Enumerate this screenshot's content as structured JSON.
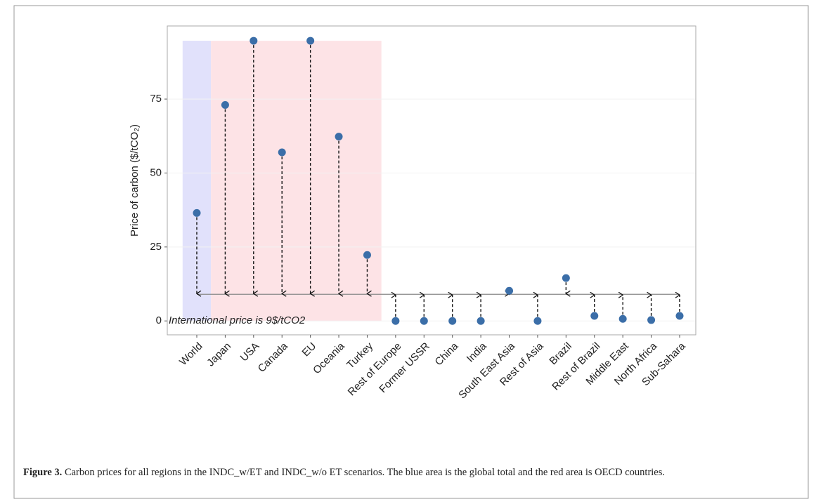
{
  "chart_data": {
    "type": "scatter",
    "ylabel": "Price of carbon ($/tCO₂)",
    "categories": [
      "World",
      "Japan",
      "USA",
      "Canada",
      "EU",
      "Oceania",
      "Turkey",
      "Rest of Europe",
      "Former USSR",
      "China",
      "India",
      "South East Asia",
      "Rest of Asia",
      "Brazil",
      "Rest of Brazil",
      "Middle East",
      "North Africa",
      "Sub-Sahara"
    ],
    "values": [
      36.5,
      73,
      94.7,
      57,
      94.7,
      62.3,
      22.3,
      0,
      0,
      0,
      0,
      10.2,
      0,
      14.5,
      1.7,
      0.7,
      0.3,
      1.7
    ],
    "color": "#3b6ea8",
    "international_price": {
      "value": 9,
      "label": "International price is 9$/tCO2"
    },
    "bands": [
      {
        "from": "World",
        "to": "World",
        "color": "#e1e1fb"
      },
      {
        "from": "Japan",
        "to": "Turkey",
        "color": "#fde3e6"
      }
    ],
    "ylim": [
      -4.7,
      99.7
    ],
    "yticks": [
      0,
      25,
      50,
      75
    ],
    "grid": true
  },
  "caption": {
    "label": "Figure 3.",
    "text": "Carbon prices for all regions in the INDC_w/ET and INDC_w/o ET scenarios. The blue area is the global total and the red area is OECD countries."
  }
}
